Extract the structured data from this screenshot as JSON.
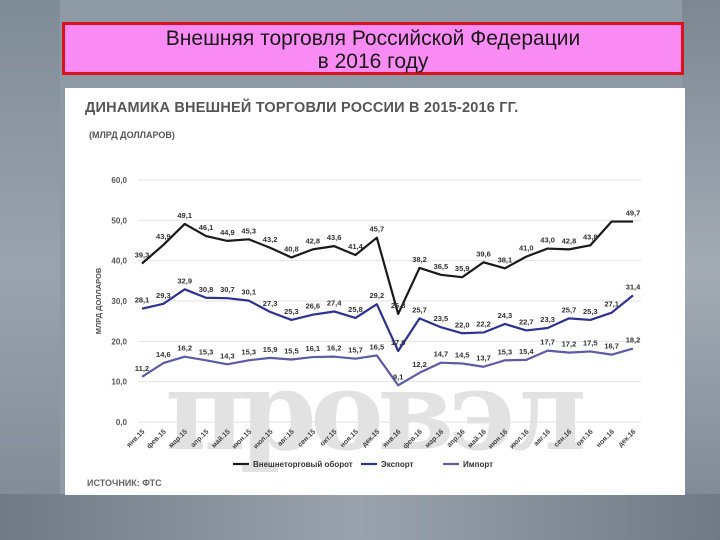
{
  "slide": {
    "title_line1": "Внешняя торговля Российской Федерации",
    "title_line2": "в 2016 году"
  },
  "chart_data": {
    "type": "line",
    "title": "ДИНАМИКА ВНЕШНЕЙ ТОРГОВЛИ РОССИИ В 2015-2016 ГГ.",
    "subtitle": "(МЛРД ДОЛЛАРОВ)",
    "ylabel": "МЛРД ДОЛЛАРОВ",
    "source": "ИСТОЧНИК: ФТС",
    "ylim": [
      0,
      60
    ],
    "yticks": [
      "0,0",
      "10,0",
      "20,0",
      "30,0",
      "40,0",
      "50,0",
      "60,0"
    ],
    "grid": true,
    "legend_position": "bottom",
    "categories": [
      "янв.15",
      "фев.15",
      "мар.15",
      "апр.15",
      "май.15",
      "июн.15",
      "июл.15",
      "авг.15",
      "сен.15",
      "окт.15",
      "ноя.15",
      "дек.15",
      "янв.16",
      "фев.16",
      "мар.16",
      "апр.16",
      "май.16",
      "июн.16",
      "июл.16",
      "авг.16",
      "сен.16",
      "окт.16",
      "ноя.16",
      "дек.16"
    ],
    "series": [
      {
        "name": "Внешнеторговый оборот",
        "color": "#1a1a1a",
        "values": [
          39.3,
          43.9,
          49.1,
          46.1,
          44.9,
          45.3,
          43.2,
          40.8,
          42.8,
          43.6,
          41.4,
          45.7,
          26.8,
          38.2,
          36.5,
          35.9,
          39.6,
          38.1,
          41.0,
          43.0,
          42.8,
          43.8,
          49.7,
          49.7
        ],
        "labels": [
          "39,3",
          "43,9",
          "49,1",
          "46,1",
          "44,9",
          "45,3",
          "43,2",
          "40,8",
          "42,8",
          "43,6",
          "41,4",
          "45,7",
          "26,8",
          "38,2",
          "36,5",
          "35,9",
          "39,6",
          "38,1",
          "41,0",
          "43,0",
          "42,8",
          "43,8",
          "",
          "49,7"
        ]
      },
      {
        "name": "Экспорт",
        "color": "#2e3192",
        "values": [
          28.1,
          29.3,
          32.9,
          30.8,
          30.7,
          30.1,
          27.3,
          25.3,
          26.6,
          27.4,
          25.8,
          29.2,
          17.6,
          25.7,
          23.5,
          22.0,
          22.2,
          24.3,
          22.7,
          23.3,
          25.7,
          25.3,
          27.1,
          31.4
        ],
        "labels": [
          "28,1",
          "29,3",
          "32,9",
          "30,8",
          "30,7",
          "30,1",
          "27,3",
          "25,3",
          "26,6",
          "27,4",
          "25,8",
          "29,2",
          "17,6",
          "25,7",
          "23,5",
          "22,0",
          "22,2",
          "24,3",
          "22,7",
          "23,3",
          "25,7",
          "25,3",
          "27,1",
          "31,4"
        ]
      },
      {
        "name": "Импорт",
        "color": "#5b5ba8",
        "values": [
          11.2,
          14.6,
          16.2,
          15.3,
          14.3,
          15.3,
          15.9,
          15.5,
          16.1,
          16.2,
          15.7,
          16.5,
          9.1,
          12.2,
          14.7,
          14.5,
          13.7,
          15.3,
          15.4,
          17.7,
          17.2,
          17.5,
          16.7,
          18.2
        ],
        "labels": [
          "11,2",
          "14,6",
          "16,2",
          "15,3",
          "14,3",
          "15,3",
          "15,9",
          "15,5",
          "16,1",
          "16,2",
          "15,7",
          "16,5",
          "9,1",
          "12,2",
          "14,7",
          "14,5",
          "13,7",
          "15,3",
          "15,4",
          "17,7",
          "17,2",
          "17,5",
          "16,7",
          "18,2"
        ]
      }
    ]
  }
}
